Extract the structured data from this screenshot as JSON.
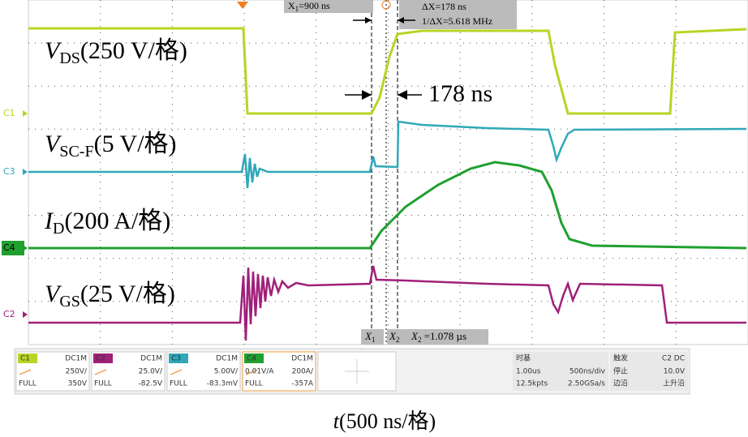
{
  "cursors": {
    "x1": {
      "name": "X",
      "sub": "1",
      "value": "=900 ns"
    },
    "dx": {
      "name": "ΔX",
      "value": "=178 ns"
    },
    "inv": {
      "name": "1/ΔX",
      "value": "=5.618 MHz"
    },
    "x2": {
      "name": "X",
      "sub": "2",
      "value": " =1.078 µs"
    },
    "marker1": {
      "name": "X",
      "sub": "1"
    },
    "marker2": {
      "name": "X",
      "sub": "2"
    }
  },
  "delay": "178 ns",
  "labels": [
    {
      "main": "V",
      "sub": "DS",
      "rest": "(250 V/格)"
    },
    {
      "main": "V",
      "sub": "SC-F",
      "rest": "(5 V/格)"
    },
    {
      "main": "I",
      "sub": "D",
      "rest": "(200 A/格)"
    },
    {
      "main": "V",
      "sub": "GS",
      "rest": "(25 V/格)"
    }
  ],
  "channels_markers": [
    "C1",
    "C3",
    "C4",
    "C2"
  ],
  "panel": {
    "channels": [
      {
        "name": "C1",
        "coupling": "DC1M",
        "scale": "250V/",
        "full": "FULL",
        "offset": "350V"
      },
      {
        "name": "C2",
        "coupling": "DC1M",
        "scale": "25.0V/",
        "full": "FULL",
        "offset": "-82.5V"
      },
      {
        "name": "C3",
        "coupling": "DC1M",
        "scale": "5.00V/",
        "full": "FULL",
        "offset": "-83.3mV"
      },
      {
        "name": "C4",
        "coupling": "DC1M",
        "scale": "200A/",
        "probe": "0.01V/A",
        "full": "FULL",
        "offset": "-357A"
      }
    ],
    "timebase": {
      "title": "时基",
      "delay": "1.00us",
      "scale": "500ns/div",
      "points": "12.5kpts",
      "rate": "2.50GSa/s"
    },
    "trigger": {
      "title": "触发",
      "source": "C2 DC",
      "state": "停止",
      "level": "10.0V",
      "type": "边沿",
      "slope": "上升沿"
    }
  },
  "caption": {
    "var": "t",
    "rest": "(500 ns/格)"
  }
}
